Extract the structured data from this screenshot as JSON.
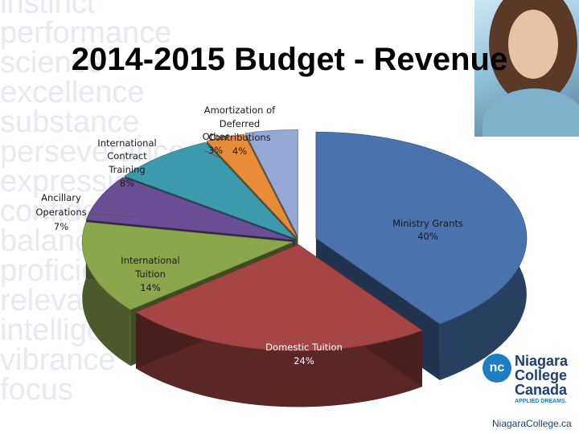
{
  "background": {
    "words": [
      "instinct",
      "performance",
      "science",
      "excellence",
      "substance",
      "perseverance",
      "expression",
      "confidence",
      "balance",
      "proficiency",
      "relevance",
      "intelligence",
      "vibrance",
      "focus"
    ]
  },
  "logo": {
    "mark": "nc",
    "line1": "Niagara",
    "line2": "College",
    "line3": "Canada",
    "tagline": "APPLIED DREAMS.",
    "url": "NiagaraCollege.ca"
  },
  "colors": {
    "ministry": "#4a72ad",
    "domestic": "#a54545",
    "intl_tuition": "#8ca64c",
    "ancillary": "#6a4f97",
    "intl_training": "#3d9aad",
    "other": "#e98c37",
    "amortization": "#95a9d4"
  },
  "chart_data": {
    "type": "pie",
    "title": "2014-2015 Budget - Revenue",
    "three_d": true,
    "exploded": true,
    "slices": [
      {
        "label": "Ministry Grants",
        "value": 40,
        "pct_label": "40%",
        "color": "#4a72ad"
      },
      {
        "label": "Domestic Tuition",
        "value": 24,
        "pct_label": "24%",
        "color": "#a54545"
      },
      {
        "label": "International Tuition",
        "value": 14,
        "pct_label": "14%",
        "color": "#8ca64c"
      },
      {
        "label": "Ancillary Operations",
        "value": 7,
        "pct_label": "7%",
        "color": "#6a4f97"
      },
      {
        "label": "International Contract Training",
        "value": 8,
        "pct_label": "8%",
        "color": "#3d9aad"
      },
      {
        "label": "Other",
        "value": 3,
        "pct_label": "3%",
        "color": "#e98c37"
      },
      {
        "label": "Amortization of Deferred Contributions",
        "value": 4,
        "pct_label": "4%",
        "color": "#95a9d4"
      }
    ]
  }
}
